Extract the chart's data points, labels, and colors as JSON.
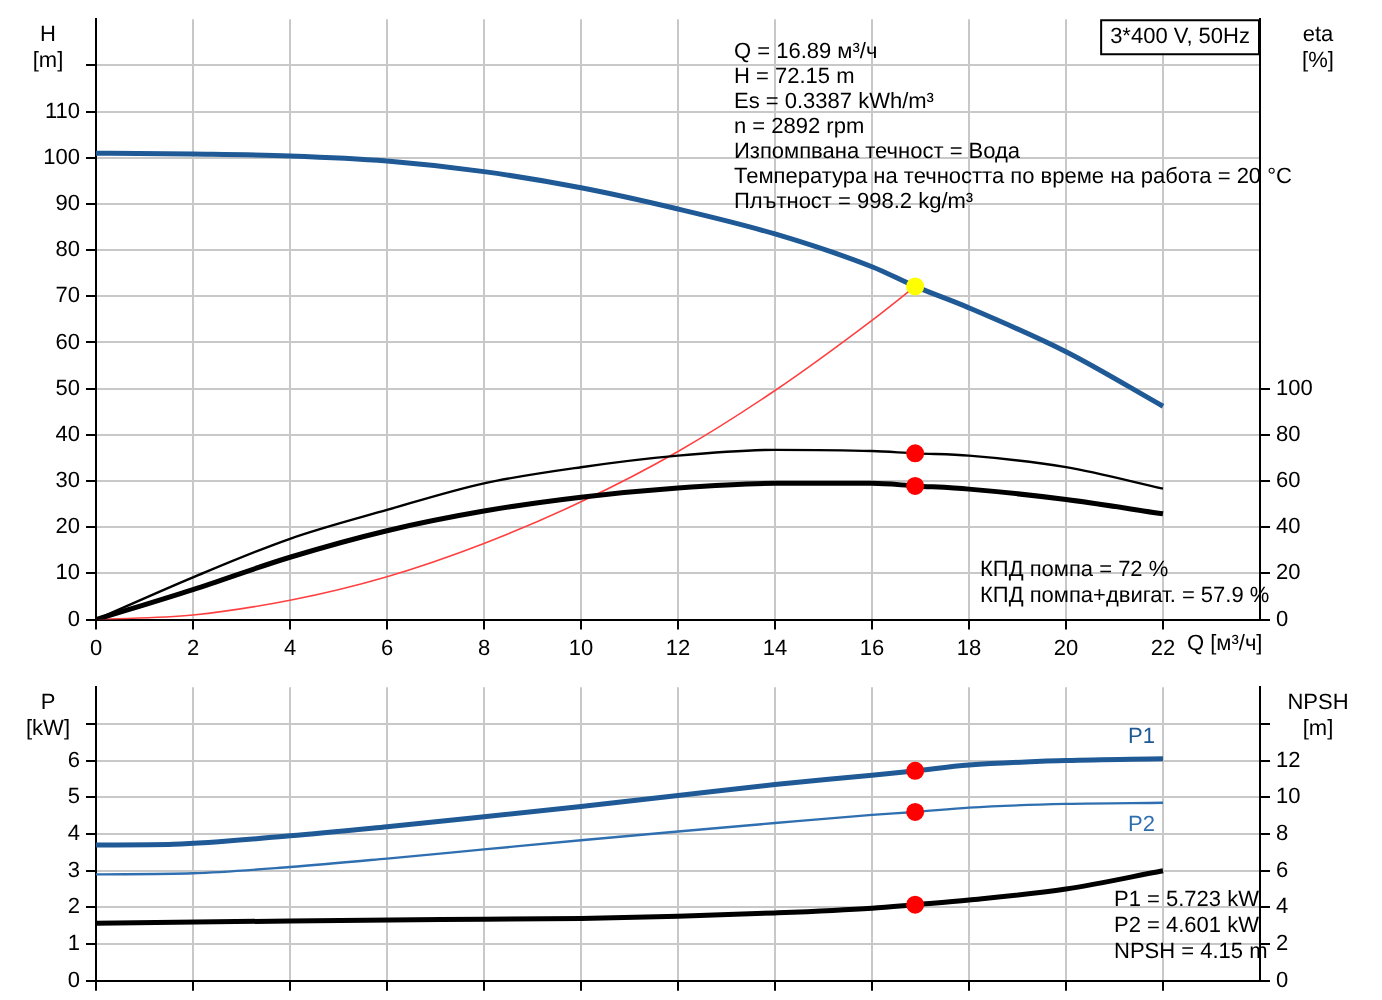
{
  "chart_data": [
    {
      "type": "line",
      "title": "3*400 V, 50Hz",
      "xlabel": "Q [м³/ч]",
      "ylabel": "H [m]",
      "y2label": "eta [%]",
      "xlim": [
        0,
        24
      ],
      "xticks": [
        0,
        2,
        4,
        6,
        8,
        10,
        12,
        14,
        16,
        18,
        20,
        22
      ],
      "ylim": [
        0,
        130
      ],
      "yticks": [
        0,
        10,
        20,
        30,
        40,
        50,
        60,
        70,
        80,
        90,
        100,
        110,
        {
          "value": 120,
          "label": null
        }
      ],
      "y2lim": [
        0,
        260
      ],
      "y2ticks": [
        0,
        20,
        40,
        60,
        80,
        100
      ],
      "grid": true,
      "legend": false,
      "marker": "none",
      "line_style": "solid",
      "series": [
        {
          "color": "#1f5a96",
          "x": [
            0,
            2,
            4,
            6,
            8,
            10,
            12,
            14,
            16,
            16.89,
            18,
            20,
            22
          ],
          "values": [
            101,
            100.8,
            100.4,
            99.3,
            97,
            93.5,
            88.9,
            83.5,
            76.4,
            72.15,
            67.5,
            58,
            46.2
          ]
        },
        {
          "color": "#000000",
          "axis": "y2",
          "x": [
            0,
            2,
            4,
            6,
            8,
            10,
            12,
            14,
            16,
            16.89,
            18,
            20,
            22
          ],
          "values": [
            0,
            18.3,
            35,
            47.5,
            59,
            66,
            71,
            73.5,
            73,
            72,
            71,
            66,
            56.7
          ]
        },
        {
          "color": "#000000",
          "axis": "y2",
          "x": [
            0,
            2,
            4,
            6,
            8,
            10,
            12,
            14,
            16,
            16.89,
            18,
            20,
            22
          ],
          "values": [
            0,
            13,
            27,
            38.5,
            47,
            53,
            57,
            59,
            59,
            57.9,
            56.5,
            52,
            45.8
          ]
        },
        {
          "color": "#ff4040",
          "x": [
            0,
            2,
            4,
            6,
            8,
            10,
            12,
            14,
            16,
            16.89
          ],
          "values": [
            0,
            1,
            4.2,
            9.3,
            16.5,
            25.5,
            36.4,
            49.6,
            64.8,
            72.15
          ]
        },
        {
          "type": "scatter",
          "marker": "circle",
          "color": "#ff0000",
          "axis": "y2",
          "x": [
            16.89,
            16.89
          ],
          "values": [
            72,
            57.9
          ]
        },
        {
          "type": "scatter",
          "marker": "circle",
          "color": "#ffff00",
          "x": [
            16.89
          ],
          "values": [
            72.15
          ]
        }
      ],
      "annotations": [
        "Q = 16.89 м³/ч",
        "H = 72.15 m",
        "Es = 0.3387 kWh/m³",
        "n = 2892 rpm",
        "Изпомпвана течност = Вода",
        "Температура на течността по време на работа = 20 °C",
        "Плътност = 998.2 kg/m³",
        "КПД помпа = 72 %",
        "КПД помпа+двигат. = 57.9 %"
      ]
    },
    {
      "type": "line",
      "ylabel": "P [kW]",
      "y2label": "NPSH [m]",
      "xlim": [
        0,
        24
      ],
      "xticks": [
        0,
        2,
        4,
        6,
        8,
        10,
        12,
        14,
        16,
        18,
        20,
        22
      ],
      "ylim": [
        0,
        8
      ],
      "yticks": [
        0,
        1,
        2,
        3,
        4,
        5,
        6,
        {
          "value": 7,
          "label": null
        }
      ],
      "y2lim": [
        0,
        16
      ],
      "y2ticks": [
        0,
        2,
        4,
        6,
        8,
        10,
        12,
        {
          "value": 14,
          "label": null
        }
      ],
      "grid": true,
      "legend": false,
      "marker": "none",
      "line_style": "solid",
      "tick_labels": "y",
      "series": [
        {
          "name": "P1",
          "color": "#1f5a96",
          "x": [
            0,
            1.6,
            4,
            6,
            8,
            10,
            12,
            14,
            16,
            16.89,
            18,
            20,
            22
          ],
          "values": [
            3.7,
            3.72,
            3.95,
            4.2,
            4.47,
            4.75,
            5.05,
            5.35,
            5.6,
            5.723,
            5.88,
            6,
            6.05
          ]
        },
        {
          "name": "P2",
          "color": "#2f6fb0",
          "x": [
            0,
            2,
            4,
            6,
            8,
            10,
            12,
            14,
            16,
            16.89,
            18,
            20,
            22
          ],
          "values": [
            2.9,
            2.93,
            3.1,
            3.33,
            3.58,
            3.83,
            4.07,
            4.3,
            4.52,
            4.601,
            4.72,
            4.82,
            4.85
          ]
        },
        {
          "color": "#000000",
          "axis": "y2",
          "x": [
            0,
            4,
            8,
            10,
            12,
            14,
            16,
            16.89,
            18,
            20,
            22
          ],
          "values": [
            3.14,
            3.26,
            3.36,
            3.4,
            3.52,
            3.7,
            3.96,
            4.15,
            4.4,
            5,
            6
          ]
        },
        {
          "type": "scatter",
          "marker": "circle",
          "color": "#ff0000",
          "x": [
            16.89,
            16.89
          ],
          "values": [
            5.723,
            4.601
          ]
        },
        {
          "type": "scatter",
          "marker": "circle",
          "color": "#ff0000",
          "axis": "y2",
          "x": [
            16.89
          ],
          "values": [
            4.15
          ]
        }
      ],
      "annotations": [
        "P1 = 5.723 kW",
        "P2 = 4.601 kW",
        "NPSH = 4.15 m"
      ]
    }
  ]
}
